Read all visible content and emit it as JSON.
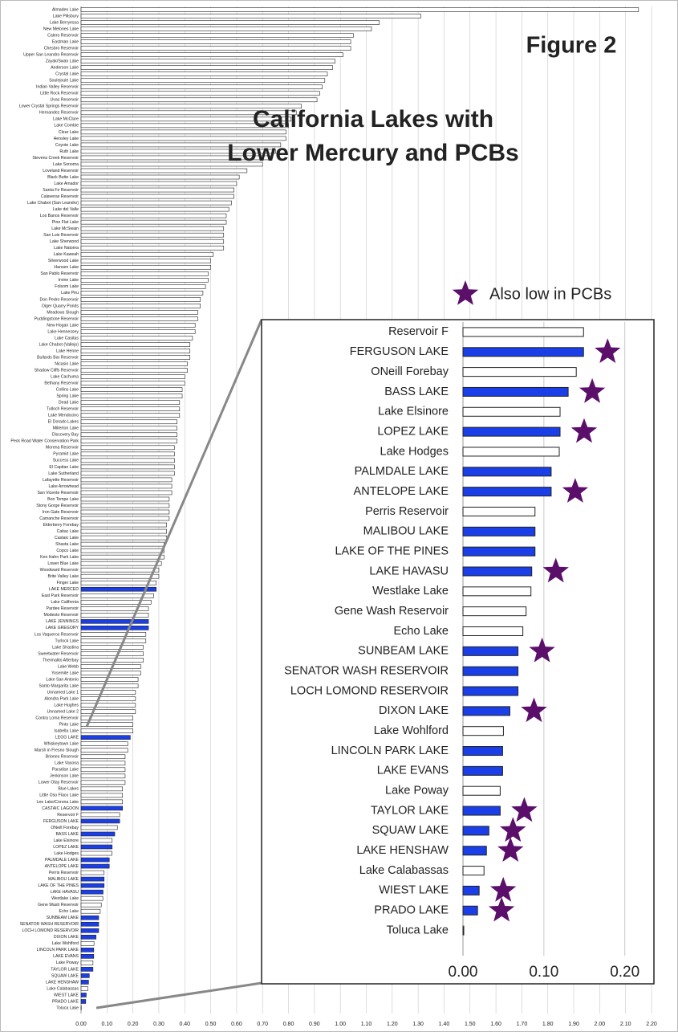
{
  "chart_data": [
    {
      "type": "bar",
      "orientation": "horizontal",
      "figure_label": "Figure 2",
      "title": "California Lakes with Lower Mercury and PCBs",
      "categories": [
        "Almaden Lake",
        "Lake Pillsbury",
        "Lake Berryessa",
        "New Melones Lake",
        "Calero Reservoir",
        "Eastman Lake",
        "Chesbro Reservoir",
        "Upper San Leandro Reservoir",
        "Zayak/Swan Lake",
        "Anderson Lake",
        "Crystal Lake",
        "Soulejoule Lake",
        "Indian Valley Reservoir",
        "Little Rock Reservoir",
        "Uvas Reservoir",
        "Lower Crystal Springs Reservoir",
        "Hernandez Reservoir",
        "Lake McClure",
        "Lake Combie",
        "Clear Lake",
        "Hensley Lake",
        "Coyote Lake",
        "Ruth Lake",
        "Stevens Creek Reservoir",
        "Lake Sonoma",
        "Loveland Reservoir",
        "Black Butte Lake",
        "Lake Amador",
        "Santa Fe Reservoir",
        "Calaveras Reservoir",
        "Lake Chabot (San Leandro)",
        "Lake del Valle",
        "Los Banos Reservoir",
        "Pine Flat Lake",
        "Lake McSwain",
        "San Luis Reservoir",
        "Lake Sherwood",
        "Lake Natoma",
        "Lake Kaweah",
        "Silverwood Lake",
        "Hansen Lake",
        "San Pablo Reservoir",
        "Irvine Lake",
        "Folsom Lake",
        "Lake Piru",
        "Don Pedro Reservoir",
        "Oiger Quarry Ponds",
        "Meadows Slough",
        "Puddingstone Reservoir",
        "New Hogan Lake",
        "Lake Hennessey",
        "Lake Casitas",
        "Lake Chabot (Vallejo)",
        "Lake Henne",
        "Bullards Bar Reservoir",
        "Nicasio Lake",
        "Shadow Cliffs Reservoir",
        "Lake Cachuma",
        "Bethany Reservoir",
        "Collins Lake",
        "Spring Lake",
        "Dead Lake",
        "Tulloch Reservoir",
        "Lake Mendocino",
        "El Dorado Lakes",
        "Millerton Lake",
        "Discovery Bay",
        "Peck Road Water Conservation Park",
        "Morena Reservoir",
        "Pyramid Lake",
        "Success Lake",
        "El Capitan Lake",
        "Lake Sutherland",
        "Lafayette Reservoir",
        "Lake Arrowhead",
        "San Vicente Reservoir",
        "Bon Tempe Lake",
        "Stony Gorge Reservoir",
        "Iron Gate Reservoir",
        "Camanche Reservoir",
        "Elderberry Forebay",
        "Caitac Lake",
        "Castaic Lake",
        "Shasta Lake",
        "Copco Lake",
        "Ken Hahn Park Lake",
        "Lower Blue Lake",
        "Woodward Reservoir",
        "Brite Valley Lake",
        "Finger Lake",
        "LAKE MERCED",
        "East Park Reservoir",
        "Lake California",
        "Pardee Reservoir",
        "Modesto Reservoir",
        "LAKE JENNINGS",
        "LAKE GREGORY",
        "Los Vaqueros Reservoir",
        "Turlock Lake",
        "Lake Shastina",
        "Sweetwater Reservoir",
        "Thermalito Afterbay",
        "Lake Webb",
        "Yosemite Lake",
        "Lake San Antonio",
        "Santo Margarita Lake",
        "Unnamed Lake 1",
        "Alondra Park Lake",
        "Lake Hughes",
        "Unnamed Lake 2",
        "Contra Loma Reservoir",
        "Pinto Lake",
        "Isabella Lake",
        "LEGG LAKE",
        "Whiskeytown Lake",
        "Marsh in Fresno Slough",
        "Briones Reservoir",
        "Lake Vasona",
        "Paradise Lake",
        "Jenkinson Lake",
        "Lower Otay Reservoir",
        "Blue Lakes",
        "Little Oso Flaco Lake",
        "Lee Lake/Corona Lake",
        "CASTAIC LAGOON",
        "Reservoir F",
        "FERGUSON LAKE",
        "ONeill Forebay",
        "BASS LAKE",
        "Lake Elsinore",
        "LOPEZ LAKE",
        "Lake Hodges",
        "PALMDALE LAKE",
        "ANTELOPE LAKE",
        "Perris Reservoir",
        "MALIBOU LAKE",
        "LAKE OF THE PINES",
        "LAKE HAVASU",
        "Westlake Lake",
        "Gene Wash Reservoir",
        "Echo Lake",
        "SUNBEAM LAKE",
        "SENATOR WASH RESERVOIR",
        "LOCH LOMOND RESERVOIR",
        "DIXON LAKE",
        "Lake Wohlford",
        "LINCOLN PARK LAKE",
        "LAKE EVANS",
        "Lake Poway",
        "TAYLOR LAKE",
        "SQUAW LAKE",
        "LAKE HENSHAW",
        "Lake Calabassas",
        "WIEST LAKE",
        "PRADO LAKE",
        "Toluca Lake"
      ],
      "values": [
        2.15,
        1.31,
        1.15,
        1.12,
        1.05,
        1.04,
        1.04,
        1.01,
        0.98,
        0.97,
        0.95,
        0.94,
        0.93,
        0.92,
        0.91,
        0.85,
        0.83,
        0.81,
        0.8,
        0.79,
        0.79,
        0.77,
        0.75,
        0.73,
        0.7,
        0.64,
        0.61,
        0.6,
        0.59,
        0.59,
        0.58,
        0.57,
        0.56,
        0.56,
        0.55,
        0.55,
        0.55,
        0.55,
        0.51,
        0.5,
        0.5,
        0.49,
        0.49,
        0.48,
        0.47,
        0.46,
        0.46,
        0.45,
        0.45,
        0.44,
        0.44,
        0.43,
        0.42,
        0.42,
        0.42,
        0.41,
        0.41,
        0.4,
        0.4,
        0.39,
        0.39,
        0.38,
        0.38,
        0.38,
        0.37,
        0.37,
        0.37,
        0.37,
        0.36,
        0.36,
        0.36,
        0.36,
        0.36,
        0.35,
        0.35,
        0.35,
        0.34,
        0.34,
        0.34,
        0.34,
        0.33,
        0.33,
        0.33,
        0.32,
        0.32,
        0.32,
        0.31,
        0.3,
        0.3,
        0.29,
        0.29,
        0.28,
        0.27,
        0.26,
        0.26,
        0.26,
        0.26,
        0.25,
        0.25,
        0.24,
        0.24,
        0.24,
        0.23,
        0.23,
        0.22,
        0.22,
        0.21,
        0.21,
        0.21,
        0.21,
        0.2,
        0.2,
        0.2,
        0.19,
        0.18,
        0.18,
        0.17,
        0.17,
        0.17,
        0.17,
        0.17,
        0.16,
        0.16,
        0.16,
        0.16,
        0.149,
        0.149,
        0.14,
        0.13,
        0.12,
        0.12,
        0.119,
        0.109,
        0.109,
        0.089,
        0.089,
        0.089,
        0.085,
        0.084,
        0.078,
        0.074,
        0.068,
        0.068,
        0.068,
        0.058,
        0.05,
        0.049,
        0.049,
        0.046,
        0.046,
        0.032,
        0.029,
        0.026,
        0.02,
        0.018,
        0.001
      ],
      "colors": [
        "#fff",
        "#fff",
        "#fff",
        "#fff",
        "#fff",
        "#fff",
        "#fff",
        "#fff",
        "#fff",
        "#fff",
        "#fff",
        "#fff",
        "#fff",
        "#fff",
        "#fff",
        "#fff",
        "#fff",
        "#fff",
        "#fff",
        "#fff",
        "#fff",
        "#fff",
        "#fff",
        "#fff",
        "#fff",
        "#fff",
        "#fff",
        "#fff",
        "#fff",
        "#fff",
        "#fff",
        "#fff",
        "#fff",
        "#fff",
        "#fff",
        "#fff",
        "#fff",
        "#fff",
        "#fff",
        "#fff",
        "#fff",
        "#fff",
        "#fff",
        "#fff",
        "#fff",
        "#fff",
        "#fff",
        "#fff",
        "#fff",
        "#fff",
        "#fff",
        "#fff",
        "#fff",
        "#fff",
        "#fff",
        "#fff",
        "#fff",
        "#fff",
        "#fff",
        "#fff",
        "#fff",
        "#fff",
        "#fff",
        "#fff",
        "#fff",
        "#fff",
        "#fff",
        "#fff",
        "#fff",
        "#fff",
        "#fff",
        "#fff",
        "#fff",
        "#fff",
        "#fff",
        "#fff",
        "#fff",
        "#fff",
        "#fff",
        "#fff",
        "#fff",
        "#fff",
        "#fff",
        "#fff",
        "#fff",
        "#fff",
        "#fff",
        "#fff",
        "#fff",
        "#fff",
        "#1a3ee8",
        "#fff",
        "#fff",
        "#fff",
        "#fff",
        "#1a3ee8",
        "#1a3ee8",
        "#fff",
        "#fff",
        "#fff",
        "#fff",
        "#fff",
        "#fff",
        "#fff",
        "#fff",
        "#fff",
        "#fff",
        "#fff",
        "#fff",
        "#fff",
        "#fff",
        "#fff",
        "#fff",
        "#1a3ee8",
        "#fff",
        "#fff",
        "#fff",
        "#fff",
        "#fff",
        "#fff",
        "#fff",
        "#fff",
        "#fff",
        "#fff",
        "#1a3ee8",
        "#fff",
        "#1a3ee8",
        "#fff",
        "#1a3ee8",
        "#fff",
        "#1a3ee8",
        "#fff",
        "#1a3ee8",
        "#1a3ee8",
        "#fff",
        "#1a3ee8",
        "#1a3ee8",
        "#1a3ee8",
        "#fff",
        "#fff",
        "#fff",
        "#1a3ee8",
        "#1a3ee8",
        "#1a3ee8",
        "#1a3ee8",
        "#fff",
        "#1a3ee8",
        "#1a3ee8",
        "#fff",
        "#1a3ee8",
        "#1a3ee8",
        "#1a3ee8",
        "#fff",
        "#1a3ee8",
        "#1a3ee8",
        "#fff"
      ],
      "xlim": [
        0,
        2.2
      ],
      "xticks": [
        {
          "value": 0,
          "label": "0.00"
        },
        {
          "value": 0.1,
          "label": "0.10"
        },
        {
          "value": 0.2,
          "label": "0.20"
        },
        {
          "value": 0.3,
          "label": "0.30"
        },
        {
          "value": 0.4,
          "label": "0.40"
        },
        {
          "value": 0.5,
          "label": "0.50"
        },
        {
          "value": 0.6,
          "label": "0.60"
        },
        {
          "value": 0.7,
          "label": "0.70"
        },
        {
          "value": 0.8,
          "label": "0.80"
        },
        {
          "value": 0.9,
          "label": "0.90"
        },
        {
          "value": 1,
          "label": "1.00"
        },
        {
          "value": 1.1,
          "label": "1.10"
        },
        {
          "value": 1.2,
          "label": "1.20"
        },
        {
          "value": 1.3,
          "label": "1.30"
        },
        {
          "value": 1.4,
          "label": "1.40"
        },
        {
          "value": 1.5,
          "label": "1.50"
        },
        {
          "value": 1.6,
          "label": "1.60"
        },
        {
          "value": 1.7,
          "label": "1.70"
        },
        {
          "value": 1.8,
          "label": "1.80"
        },
        {
          "value": 1.9,
          "label": "1.90"
        },
        {
          "value": 2,
          "label": "2.00"
        },
        {
          "value": 2.1,
          "label": "2.10"
        },
        {
          "value": 2.2,
          "label": "2.20"
        }
      ],
      "grid": true
    },
    {
      "type": "bar",
      "orientation": "horizontal",
      "marker_legend": "Also low in PCBs",
      "categories": [
        "Reservoir F",
        "FERGUSON LAKE",
        "ONeill Forebay",
        "BASS LAKE",
        "Lake Elsinore",
        "LOPEZ LAKE",
        "Lake Hodges",
        "PALMDALE LAKE",
        "ANTELOPE LAKE",
        "Perris Reservoir",
        "MALIBOU LAKE",
        "LAKE OF THE PINES",
        "LAKE HAVASU",
        "Westlake Lake",
        "Gene Wash Reservoir",
        "Echo Lake",
        "SUNBEAM LAKE",
        "SENATOR WASH RESERVOIR",
        "LOCH LOMOND RESERVOIR",
        "DIXON LAKE",
        "Lake Wohlford",
        "LINCOLN PARK LAKE",
        "LAKE EVANS",
        "Lake Poway",
        "TAYLOR LAKE",
        "SQUAW LAKE",
        "LAKE HENSHAW",
        "Lake Calabassas",
        "WIEST LAKE",
        "PRADO LAKE",
        "Toluca Lake"
      ],
      "values": [
        0.149,
        0.149,
        0.14,
        0.13,
        0.12,
        0.12,
        0.119,
        0.109,
        0.109,
        0.089,
        0.089,
        0.089,
        0.085,
        0.084,
        0.078,
        0.074,
        0.068,
        0.068,
        0.068,
        0.058,
        0.05,
        0.049,
        0.049,
        0.046,
        0.046,
        0.032,
        0.029,
        0.026,
        0.02,
        0.018,
        0.001
      ],
      "colors": [
        "#fff",
        "#1a3ee8",
        "#fff",
        "#1a3ee8",
        "#fff",
        "#1a3ee8",
        "#fff",
        "#1a3ee8",
        "#1a3ee8",
        "#fff",
        "#1a3ee8",
        "#1a3ee8",
        "#1a3ee8",
        "#fff",
        "#fff",
        "#fff",
        "#1a3ee8",
        "#1a3ee8",
        "#1a3ee8",
        "#1a3ee8",
        "#fff",
        "#1a3ee8",
        "#1a3ee8",
        "#fff",
        "#1a3ee8",
        "#1a3ee8",
        "#1a3ee8",
        "#fff",
        "#1a3ee8",
        "#1a3ee8",
        "#fff"
      ],
      "low_pcb": [
        false,
        true,
        false,
        true,
        false,
        true,
        false,
        false,
        true,
        false,
        false,
        false,
        true,
        false,
        false,
        false,
        true,
        false,
        false,
        true,
        false,
        false,
        false,
        false,
        true,
        true,
        true,
        false,
        true,
        true,
        false
      ],
      "marker_color": "#5b0f6b",
      "xlim": [
        0,
        0.236
      ],
      "xticks": [
        {
          "value": 0,
          "label": "0.00"
        },
        {
          "value": 0.1,
          "label": "0.10"
        },
        {
          "value": 0.2,
          "label": "0.20"
        }
      ],
      "grid": true
    }
  ]
}
